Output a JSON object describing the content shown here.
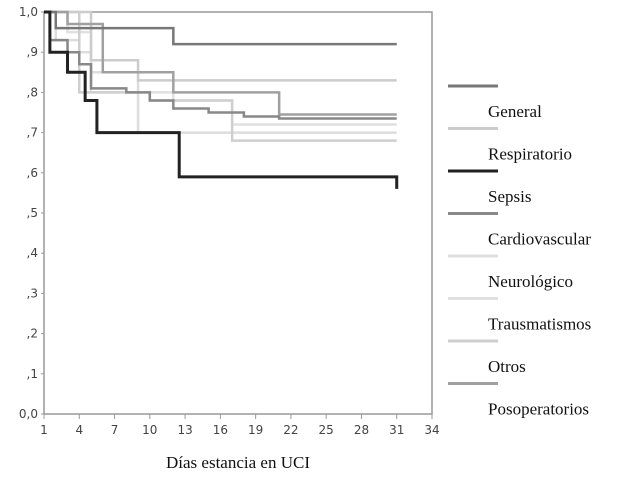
{
  "chart_data": {
    "type": "step-line",
    "x_label": "Días estancia en UCI",
    "xlim": [
      1,
      34
    ],
    "xticks": [
      1,
      4,
      7,
      10,
      13,
      16,
      19,
      22,
      25,
      28,
      31,
      34
    ],
    "ylim": [
      0,
      1
    ],
    "yticks": [
      {
        "value": 0,
        "label": "0,0"
      },
      {
        "value": 0.1,
        "label": ",1"
      },
      {
        "value": 0.2,
        "label": ",2"
      },
      {
        "value": 0.3,
        "label": ",3"
      },
      {
        "value": 0.4,
        "label": ",4"
      },
      {
        "value": 0.5,
        "label": ",5"
      },
      {
        "value": 0.6,
        "label": ",6"
      },
      {
        "value": 0.7,
        "label": ",7"
      },
      {
        "value": 0.8,
        "label": ",8"
      },
      {
        "value": 0.9,
        "label": ",9"
      },
      {
        "value": 1,
        "label": "1,0"
      }
    ],
    "legend": "right",
    "series": [
      {
        "name": "General",
        "color": "#777777",
        "x": [
          1,
          2,
          12,
          31
        ],
        "values": [
          1.0,
          0.96,
          0.92,
          0.92
        ]
      },
      {
        "name": "Respiratorio",
        "color": "#cccccc",
        "x": [
          1,
          5,
          9,
          31
        ],
        "values": [
          1.0,
          0.88,
          0.83,
          0.83
        ]
      },
      {
        "name": "Sepsis",
        "color": "#222222",
        "x": [
          1,
          1.5,
          3,
          4.5,
          5.5,
          12.5,
          31
        ],
        "values": [
          1.0,
          0.9,
          0.85,
          0.78,
          0.7,
          0.59,
          0.56
        ]
      },
      {
        "name": "Cardiovascular",
        "color": "#888888",
        "x": [
          1,
          1.5,
          3,
          4,
          5,
          8,
          10,
          12,
          15,
          18,
          21,
          31
        ],
        "values": [
          1.0,
          0.93,
          0.9,
          0.87,
          0.81,
          0.8,
          0.78,
          0.76,
          0.75,
          0.74,
          0.735,
          0.735
        ]
      },
      {
        "name": "Neurológico",
        "color": "#dddddd",
        "x": [
          1,
          2,
          4,
          5,
          9,
          31
        ],
        "values": [
          1.0,
          0.93,
          0.9,
          0.85,
          0.7,
          0.7
        ]
      },
      {
        "name": "Trausmatismos",
        "color": "#e0e0e0",
        "x": [
          1,
          3,
          5,
          12,
          17,
          31
        ],
        "values": [
          1.0,
          0.95,
          0.8,
          0.78,
          0.72,
          0.72
        ]
      },
      {
        "name": "Otros",
        "color": "#cfcfcf",
        "x": [
          1,
          4,
          10,
          17,
          31
        ],
        "values": [
          1.0,
          0.8,
          0.78,
          0.68,
          0.68
        ]
      },
      {
        "name": "Posoperatorios",
        "color": "#a0a0a0",
        "x": [
          1,
          3,
          6,
          12,
          21,
          31
        ],
        "values": [
          1.0,
          0.97,
          0.85,
          0.8,
          0.745,
          0.745
        ]
      }
    ]
  }
}
